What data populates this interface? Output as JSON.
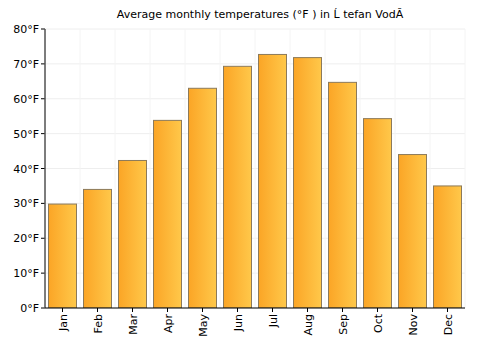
{
  "chart_data": {
    "type": "bar",
    "title": "Average monthly temperatures (°F ) in Ĺ tefan VodĂ",
    "categories": [
      "Jan",
      "Feb",
      "Mar",
      "Apr",
      "May",
      "Jun",
      "Jul",
      "Aug",
      "Sep",
      "Oct",
      "Nov",
      "Dec"
    ],
    "values": [
      29.8,
      34,
      42.3,
      53.8,
      63,
      69.3,
      72.7,
      71.8,
      64.7,
      54.3,
      44,
      35
    ],
    "color": "#fba526",
    "ylim": [
      0,
      80
    ],
    "yticks": [
      {
        "value": 0,
        "label": "0°F"
      },
      {
        "value": 10,
        "label": "10°F"
      },
      {
        "value": 20,
        "label": "20°F"
      },
      {
        "value": 30,
        "label": "30°F"
      },
      {
        "value": 40,
        "label": "40°F"
      },
      {
        "value": 50,
        "label": "50°F"
      },
      {
        "value": 60,
        "label": "60°F"
      },
      {
        "value": 70,
        "label": "70°F"
      },
      {
        "value": 80,
        "label": "80°F"
      }
    ],
    "grid": true
  }
}
